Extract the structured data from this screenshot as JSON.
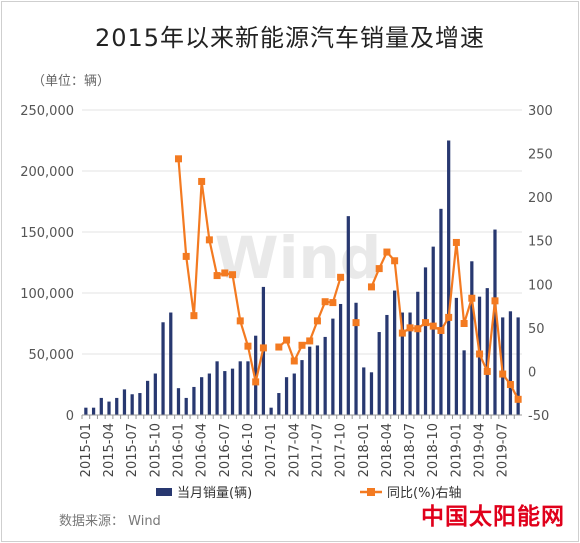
{
  "title": "2015年以来新能源汽车销量及增速",
  "unit_label": "（单位：辆）",
  "source_label": "数据来源：  Wind",
  "watermark_text": "Wind",
  "brand_logo_text": "中国太阳能网",
  "colors": {
    "bar": "#283870",
    "line": "#f37a21",
    "grid": "#e3e3e3",
    "brand": "#e0001b"
  },
  "chart_data": {
    "type": "bar",
    "title": "2015年以来新能源汽车销量及增速",
    "categories": [
      "2015-01",
      "2015-02",
      "2015-03",
      "2015-04",
      "2015-05",
      "2015-06",
      "2015-07",
      "2015-08",
      "2015-09",
      "2015-10",
      "2015-11",
      "2015-12",
      "2016-01",
      "2016-02",
      "2016-03",
      "2016-04",
      "2016-05",
      "2016-06",
      "2016-07",
      "2016-08",
      "2016-09",
      "2016-10",
      "2016-11",
      "2016-12",
      "2017-01",
      "2017-02",
      "2017-03",
      "2017-04",
      "2017-05",
      "2017-06",
      "2017-07",
      "2017-08",
      "2017-09",
      "2017-10",
      "2017-11",
      "2017-12",
      "2018-01",
      "2018-02",
      "2018-03",
      "2018-04",
      "2018-05",
      "2018-06",
      "2018-07",
      "2018-08",
      "2018-09",
      "2018-10",
      "2018-11",
      "2018-12",
      "2019-01",
      "2019-02",
      "2019-03",
      "2019-04",
      "2019-05",
      "2019-06",
      "2019-07",
      "2019-08",
      "2019-09"
    ],
    "x_tick_labels": [
      "2015-01",
      "2015-04",
      "2015-07",
      "2015-10",
      "2016-01",
      "2016-04",
      "2016-07",
      "2016-10",
      "2017-01",
      "2017-04",
      "2017-07",
      "2017-10",
      "2018-01",
      "2018-04",
      "2018-07",
      "2018-10",
      "2019-01",
      "2019-04",
      "2019-07"
    ],
    "y_left": {
      "ticks": [
        "0",
        "50,000",
        "100,000",
        "150,000",
        "200,000",
        "250,000"
      ],
      "range": [
        0,
        250000
      ]
    },
    "y_right": {
      "ticks": [
        "-50",
        "0",
        "50",
        "100",
        "150",
        "200",
        "250",
        "300"
      ],
      "range": [
        -50,
        300
      ]
    },
    "series": [
      {
        "name": "当月销量(辆)",
        "type": "bar",
        "axis": "left",
        "values": [
          6000,
          6000,
          14000,
          11000,
          14000,
          21000,
          17000,
          18000,
          28000,
          34000,
          76000,
          84000,
          22000,
          14000,
          23000,
          31000,
          34000,
          44000,
          36000,
          38000,
          44000,
          44000,
          65000,
          105000,
          6000,
          18000,
          31000,
          34000,
          45000,
          56000,
          57000,
          64000,
          79000,
          91000,
          163000,
          92000,
          39000,
          35000,
          68000,
          82000,
          102000,
          84000,
          84000,
          101000,
          121000,
          138000,
          169000,
          225000,
          96000,
          53000,
          126000,
          97000,
          104000,
          152000,
          80000,
          85000,
          80000
        ]
      },
      {
        "name": "同比(%)右轴",
        "type": "line",
        "axis": "right",
        "values": [
          null,
          null,
          null,
          null,
          null,
          null,
          null,
          null,
          null,
          null,
          null,
          null,
          244,
          132,
          64,
          218,
          151,
          110,
          113,
          111,
          58,
          29,
          -12,
          27,
          null,
          28,
          36,
          12,
          30,
          35,
          58,
          80,
          79,
          108,
          null,
          56,
          null,
          97,
          118,
          137,
          127,
          44,
          50,
          49,
          56,
          52,
          47,
          62,
          148,
          55,
          84,
          20,
          0,
          81,
          -3,
          -15,
          -32
        ]
      }
    ]
  }
}
